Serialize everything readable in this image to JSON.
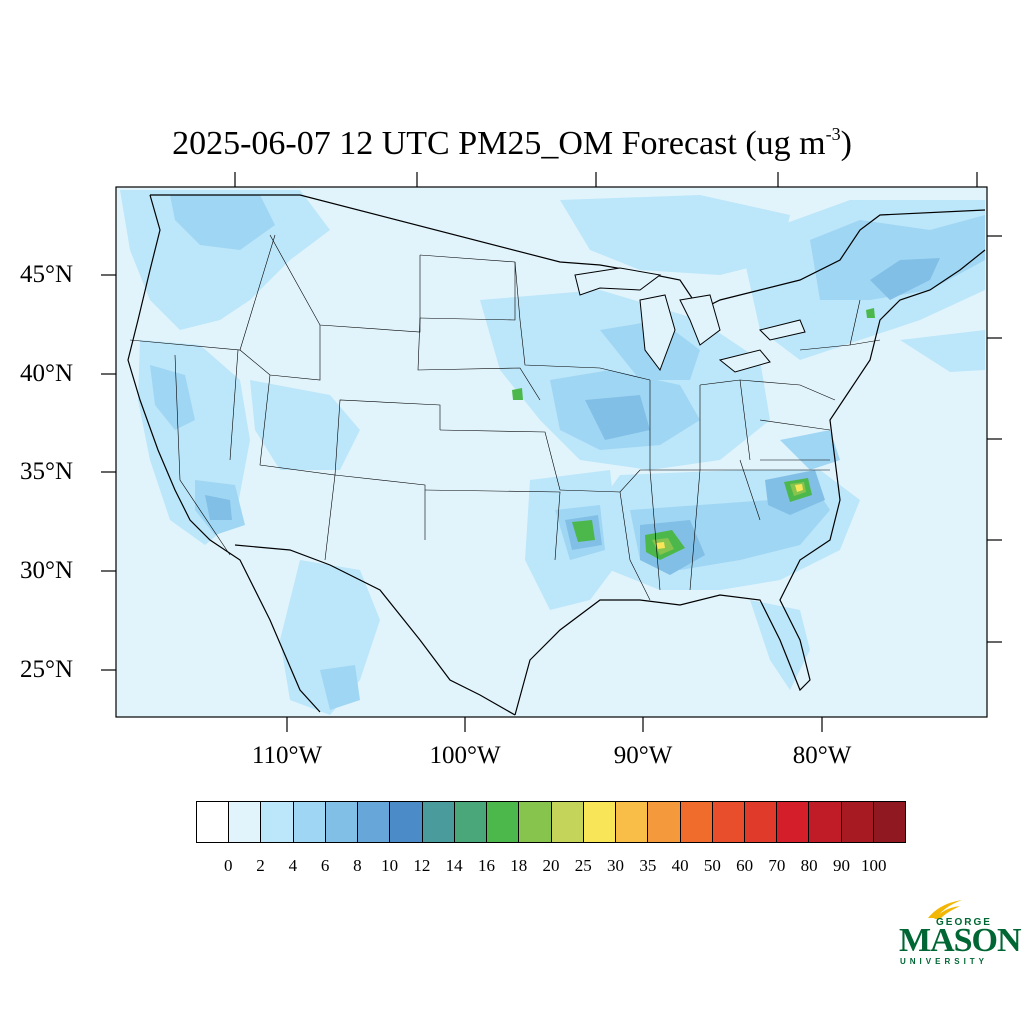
{
  "title": {
    "main": "2025-06-07 12 UTC PM25_OM Forecast (ug m",
    "sup": "-3",
    "close": ")"
  },
  "lat_labels": [
    "45°N",
    "40°N",
    "35°N",
    "30°N",
    "25°N"
  ],
  "lon_labels": [
    "110°W",
    "100°W",
    "90°W",
    "80°W"
  ],
  "colorbar": {
    "colors": [
      "#ffffff",
      "#e1f4fc",
      "#bce6f9",
      "#9fd6f4",
      "#82bfe6",
      "#66a6d9",
      "#4a8bc8",
      "#4a9b9b",
      "#4aa77a",
      "#4cb84c",
      "#86c44e",
      "#c4d45a",
      "#f9e658",
      "#f8be48",
      "#f59a3c",
      "#f06c2c",
      "#e84e2c",
      "#e03a2a",
      "#d41f2a",
      "#c01c27",
      "#a81a22",
      "#901820"
    ],
    "labels": [
      "0",
      "2",
      "4",
      "6",
      "8",
      "10",
      "12",
      "14",
      "16",
      "18",
      "20",
      "25",
      "30",
      "35",
      "40",
      "50",
      "60",
      "70",
      "80",
      "90",
      "100"
    ]
  },
  "field_colors": {
    "background": "#e1f4fc",
    "level_4": "#bce6f9",
    "level_6": "#9fd6f4",
    "level_8": "#82bfe6",
    "level_16": "#4cb84c",
    "level_20": "#86c44e",
    "level_30": "#f9e658"
  },
  "logo": {
    "line1": "GEORGE",
    "line2": "MASON",
    "line3": "UNIVERSITY",
    "green": "#006633",
    "gold": "#f2b705"
  }
}
